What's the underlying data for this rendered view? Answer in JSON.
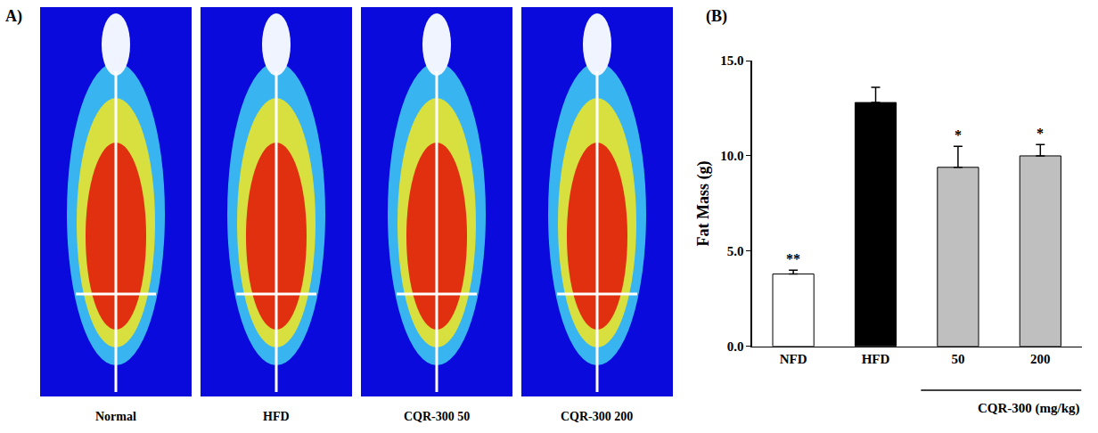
{
  "panel_a": {
    "label": "A)",
    "images": [
      "Normal",
      "HFD",
      "CQR-300 50",
      "CQR-300 200"
    ]
  },
  "chart_data": {
    "type": "bar",
    "panel_label": "(B)",
    "y_label": "Fat Mass (g)",
    "categories": [
      "NFD",
      "HFD",
      "50",
      "200"
    ],
    "values": [
      3.8,
      12.8,
      9.4,
      10.0
    ],
    "errors": [
      0.2,
      0.8,
      1.1,
      0.6
    ],
    "colors": [
      "#ffffff",
      "#000000",
      "#bfbfbf",
      "#bfbfbf"
    ],
    "ylim": [
      0,
      15
    ],
    "yticks": [
      {
        "value": 0,
        "label": "0.0"
      },
      {
        "value": 5,
        "label": "5.0"
      },
      {
        "value": 10,
        "label": "10.0"
      },
      {
        "value": 15,
        "label": "15.0"
      }
    ],
    "grid": false,
    "annotations": [
      {
        "category": "NFD",
        "text": "**"
      },
      {
        "category": "50",
        "text": "*"
      },
      {
        "category": "200",
        "text": "*"
      }
    ],
    "group_label": {
      "text": "CQR-300 (mg/kg)",
      "categories": [
        "50",
        "200"
      ]
    }
  }
}
